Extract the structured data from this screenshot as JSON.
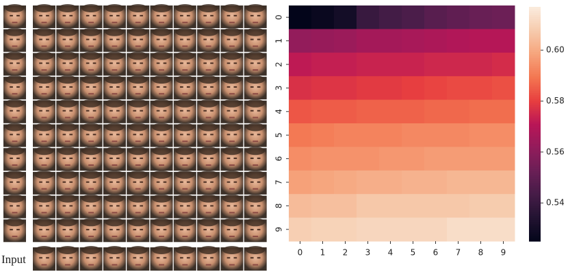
{
  "input_label": "Input",
  "chart_data": {
    "type": "heatmap",
    "colormap": "rocket",
    "categories": [
      0,
      1,
      2,
      3,
      4,
      5,
      6,
      7,
      8,
      9
    ],
    "y_categories": [
      0,
      1,
      2,
      3,
      4,
      5,
      6,
      7,
      8,
      9
    ],
    "values": [
      [
        0.524,
        0.527,
        0.53,
        0.54,
        0.543,
        0.545,
        0.548,
        0.55,
        0.552,
        0.553
      ],
      [
        0.562,
        0.563,
        0.564,
        0.566,
        0.566,
        0.567,
        0.568,
        0.569,
        0.57,
        0.57
      ],
      [
        0.572,
        0.573,
        0.573,
        0.574,
        0.574,
        0.574,
        0.575,
        0.575,
        0.575,
        0.576
      ],
      [
        0.577,
        0.578,
        0.578,
        0.579,
        0.579,
        0.58,
        0.581,
        0.582,
        0.582,
        0.583
      ],
      [
        0.584,
        0.585,
        0.585,
        0.586,
        0.586,
        0.586,
        0.587,
        0.587,
        0.588,
        0.588
      ],
      [
        0.59,
        0.591,
        0.592,
        0.592,
        0.592,
        0.593,
        0.593,
        0.593,
        0.594,
        0.594
      ],
      [
        0.594,
        0.595,
        0.595,
        0.595,
        0.596,
        0.596,
        0.597,
        0.597,
        0.597,
        0.597
      ],
      [
        0.598,
        0.599,
        0.6,
        0.601,
        0.601,
        0.602,
        0.602,
        0.603,
        0.603,
        0.603
      ],
      [
        0.604,
        0.605,
        0.605,
        0.607,
        0.607,
        0.607,
        0.607,
        0.607,
        0.608,
        0.608
      ],
      [
        0.609,
        0.61,
        0.61,
        0.611,
        0.611,
        0.611,
        0.611,
        0.613,
        0.613,
        0.613
      ]
    ],
    "clim": [
      0.525,
      0.617
    ],
    "colorbar_ticks": [
      0.54,
      0.56,
      0.58,
      {
        "value": 0.6,
        "label": "0.60"
      }
    ]
  }
}
